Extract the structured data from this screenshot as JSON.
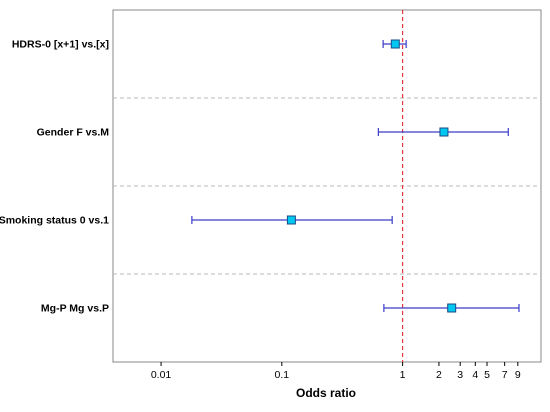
{
  "chart_data": {
    "type": "forest",
    "xlabel": "Odds ratio",
    "xscale": "log",
    "xlim": [
      0.004,
      14
    ],
    "x_ticks": [
      {
        "value": 0.01,
        "label": "0.01"
      },
      {
        "value": 0.1,
        "label": "0.1"
      },
      {
        "value": 1,
        "label": "1"
      },
      {
        "value": 2,
        "label": "2"
      },
      {
        "value": 3,
        "label": "3"
      },
      {
        "value": 4,
        "label": "4"
      },
      {
        "value": 5,
        "label": "5"
      },
      {
        "value": 7,
        "label": "7"
      },
      {
        "value": 9,
        "label": "9"
      }
    ],
    "reference_line": {
      "value": 1,
      "color": "#e8373a",
      "style": "dashed"
    },
    "separators": "dashed",
    "rows": [
      {
        "label": "HDRS-0 [x+1] vs.[x]",
        "estimate": 0.87,
        "lower": 0.69,
        "upper": 1.07
      },
      {
        "label": "Gender F vs.M",
        "estimate": 2.2,
        "lower": 0.63,
        "upper": 7.5
      },
      {
        "label": "Smoking status  0 vs.1",
        "estimate": 0.12,
        "lower": 0.018,
        "upper": 0.82
      },
      {
        "label": "Mg-P  Mg vs.P",
        "estimate": 2.55,
        "lower": 0.7,
        "upper": 9.2
      }
    ],
    "colors": {
      "ci_line": "#3c3cc8",
      "marker_fill": "#00c8f0",
      "marker_stroke": "#1a4a8a",
      "frame": "#888888",
      "separator": "#b8b8b8"
    }
  }
}
